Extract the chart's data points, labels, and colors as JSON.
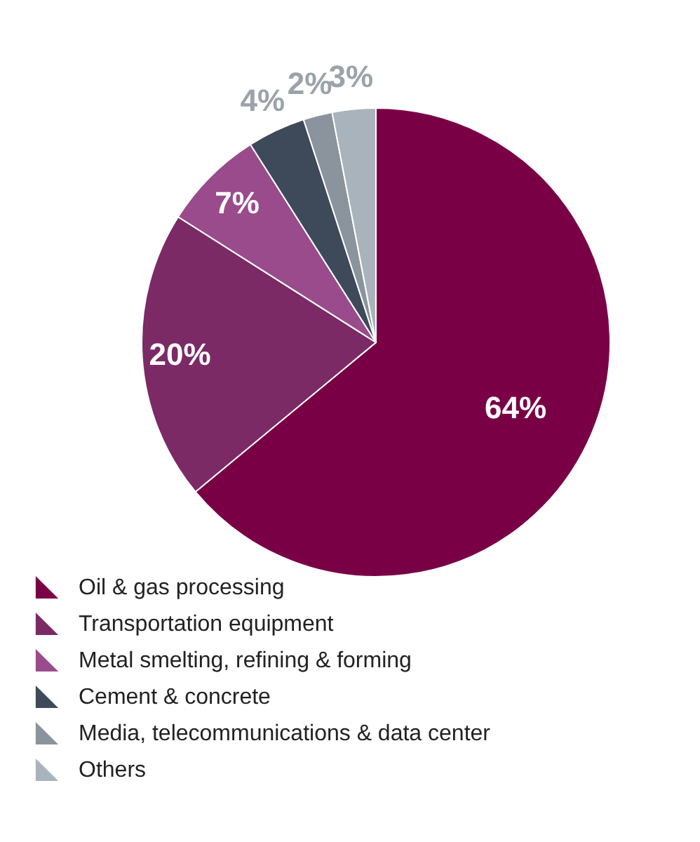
{
  "chart_data": {
    "type": "pie",
    "categories": [
      "Oil & gas processing",
      "Transportation equipment",
      "Metal smelting, refining & forming",
      "Cement & concrete",
      "Media, telecommunications & data center",
      "Others"
    ],
    "values": [
      64,
      20,
      7,
      4,
      2,
      3
    ],
    "colors": [
      "#7a0046",
      "#7b2a66",
      "#9a4b8c",
      "#3e4a5a",
      "#8b949c",
      "#a9b3bc"
    ],
    "value_labels": [
      "64%",
      "20%",
      "7%",
      "4%",
      "2%",
      "3%"
    ],
    "legend": "bottom"
  }
}
